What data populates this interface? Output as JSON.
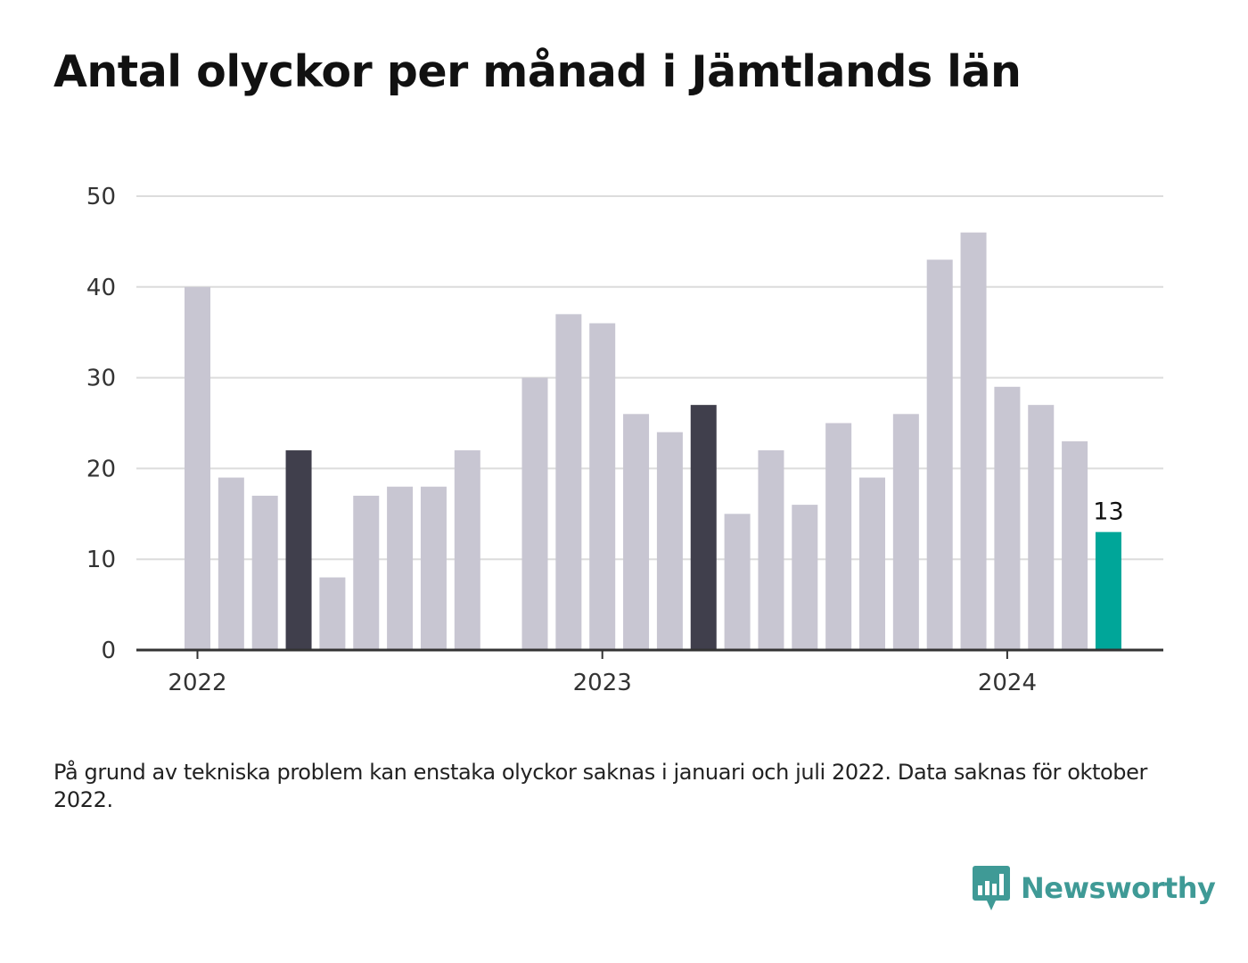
{
  "title": "Antal olyckor per månad i Jämtlands län",
  "note": "På grund av tekniska problem kan enstaka olyckor saknas i januari och juli 2022. Data saknas för oktober 2022.",
  "brand": {
    "name": "Newsworthy",
    "icon": "newsworthy-logo-icon",
    "color": "#3f9a96"
  },
  "chart_data": {
    "type": "bar",
    "title": "Antal olyckor per månad i Jämtlands län",
    "xlabel": "",
    "ylabel": "",
    "ylim": [
      0,
      50
    ],
    "yticks": [
      0,
      10,
      20,
      30,
      40,
      50
    ],
    "grid": true,
    "legend": "none",
    "xtick_labels": [
      {
        "category": "2022-01",
        "label": "2022"
      },
      {
        "category": "2023-01",
        "label": "2023"
      },
      {
        "category": "2024-01",
        "label": "2024"
      }
    ],
    "categories": [
      "2022-01",
      "2022-02",
      "2022-03",
      "2022-04",
      "2022-05",
      "2022-06",
      "2022-07",
      "2022-08",
      "2022-09",
      "2022-10",
      "2022-11",
      "2022-12",
      "2023-01",
      "2023-02",
      "2023-03",
      "2023-04",
      "2023-05",
      "2023-06",
      "2023-07",
      "2023-08",
      "2023-09",
      "2023-10",
      "2023-11",
      "2023-12",
      "2024-01",
      "2024-02",
      "2024-03",
      "2024-04"
    ],
    "values": [
      40,
      19,
      17,
      22,
      8,
      17,
      18,
      18,
      22,
      null,
      30,
      37,
      36,
      26,
      24,
      27,
      15,
      22,
      16,
      25,
      19,
      26,
      43,
      46,
      29,
      27,
      23,
      13
    ],
    "highlight": [
      "2022-04",
      "2023-04"
    ],
    "last": "2024-04",
    "data_labels": [
      {
        "category": "2024-04",
        "text": "13"
      }
    ],
    "colors": {
      "default": "#c8c6d2",
      "highlight": "#403f4c",
      "last": "#00a699",
      "grid": "#dcdcdc",
      "axis": "#333333"
    }
  }
}
